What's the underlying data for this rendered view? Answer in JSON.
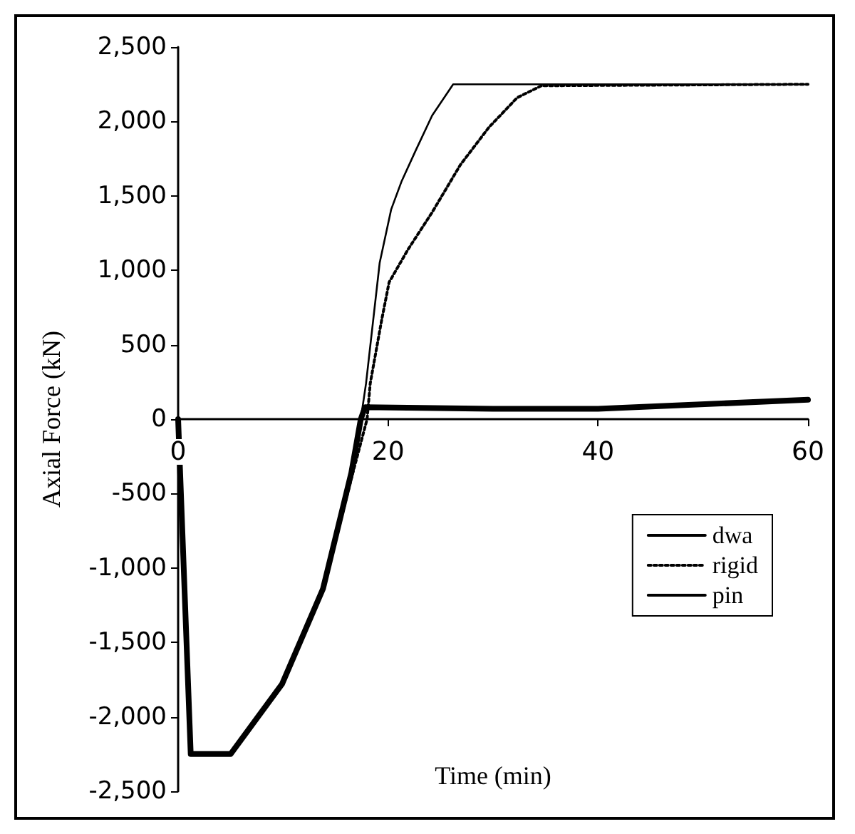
{
  "chart_data": {
    "type": "line",
    "xlabel": "Time (min)",
    "ylabel": "Axial Force (kN)",
    "xlim": [
      0,
      60
    ],
    "xticks": [
      0,
      20,
      40,
      60
    ],
    "ylim": [
      -2500,
      2500
    ],
    "yticks": [
      {
        "value": -2500,
        "label": "-2,500"
      },
      {
        "value": -2000,
        "label": "-2,000"
      },
      {
        "value": -1500,
        "label": "-1,500"
      },
      {
        "value": -1000,
        "label": "-1,000"
      },
      {
        "value": -500,
        "label": "-500"
      },
      0,
      {
        "value": 500,
        "label": "500"
      },
      {
        "value": 1000,
        "label": "1,000"
      },
      {
        "value": 1500,
        "label": "1,500"
      },
      {
        "value": 2000,
        "label": "2,000"
      },
      {
        "value": 2500,
        "label": "2,500"
      }
    ],
    "grid": false,
    "legend": "bottom right",
    "marker": "none",
    "series": [
      {
        "name": "dwa",
        "color": "#000000",
        "line_style": "solid",
        "x": [
          0,
          1.2,
          5,
          9.9,
          13.8,
          16.5,
          17.4,
          17.8,
          30,
          40,
          60
        ],
        "values": [
          0,
          -2250,
          -2250,
          -1780,
          -1140,
          -360,
          0,
          80,
          70,
          70,
          130
        ]
      },
      {
        "name": "rigid",
        "color": "#000000",
        "line_style": "dotted",
        "x": [
          0,
          1.2,
          5,
          9.9,
          13.8,
          16.5,
          18,
          18.3,
          19.4,
          20.1,
          21.9,
          24.2,
          26.9,
          29.6,
          32.3,
          34.6,
          60
        ],
        "values": [
          0,
          -2250,
          -2250,
          -1780,
          -1150,
          -400,
          0,
          240,
          670,
          920,
          1140,
          1390,
          1710,
          1960,
          2160,
          2240,
          2250
        ]
      },
      {
        "name": "pin",
        "color": "#000000",
        "line_style": "solid",
        "x": [
          0,
          1.2,
          5,
          9.9,
          13.8,
          16.5,
          17.4,
          17.9,
          19.2,
          20.3,
          21.3,
          22.6,
          24.2,
          26.2,
          60
        ],
        "values": [
          0,
          -2250,
          -2250,
          -1780,
          -1140,
          -360,
          0,
          240,
          1050,
          1410,
          1600,
          1800,
          2040,
          2250,
          2250
        ]
      }
    ]
  }
}
